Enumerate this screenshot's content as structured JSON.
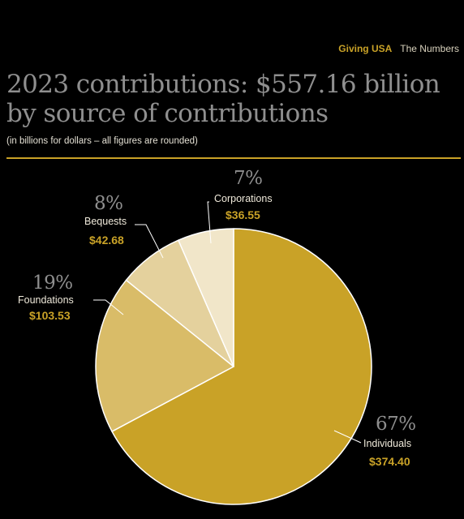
{
  "header": {
    "org": "Giving USA",
    "section": "The Numbers"
  },
  "title_line1": "2023 contributions: $557.16 billion",
  "title_line2": "by source of contributions",
  "note": "(in billions for dollars – all figures are rounded)",
  "colors": {
    "background": "#000000",
    "accent": "#c9a227",
    "title": "#8f8f8f",
    "individuals": "#c9a227",
    "foundations": "#d9bc68",
    "bequests": "#e4d19d",
    "corporations": "#f1e6c9"
  },
  "chart_data": {
    "type": "pie",
    "title": "2023 contributions: $557.16 billion by source of contributions",
    "unit": "billions of dollars",
    "slices": [
      {
        "name": "Individuals",
        "percent": "67%",
        "value": 374.4,
        "value_label": "$374.40",
        "color": "#c9a227"
      },
      {
        "name": "Foundations",
        "percent": "19%",
        "value": 103.53,
        "value_label": "$103.53",
        "color": "#d9bc68"
      },
      {
        "name": "Bequests",
        "percent": "8%",
        "value": 42.68,
        "value_label": "$42.68",
        "color": "#e4d19d"
      },
      {
        "name": "Corporations",
        "percent": "7%",
        "value": 36.55,
        "value_label": "$36.55",
        "color": "#f1e6c9"
      }
    ]
  }
}
